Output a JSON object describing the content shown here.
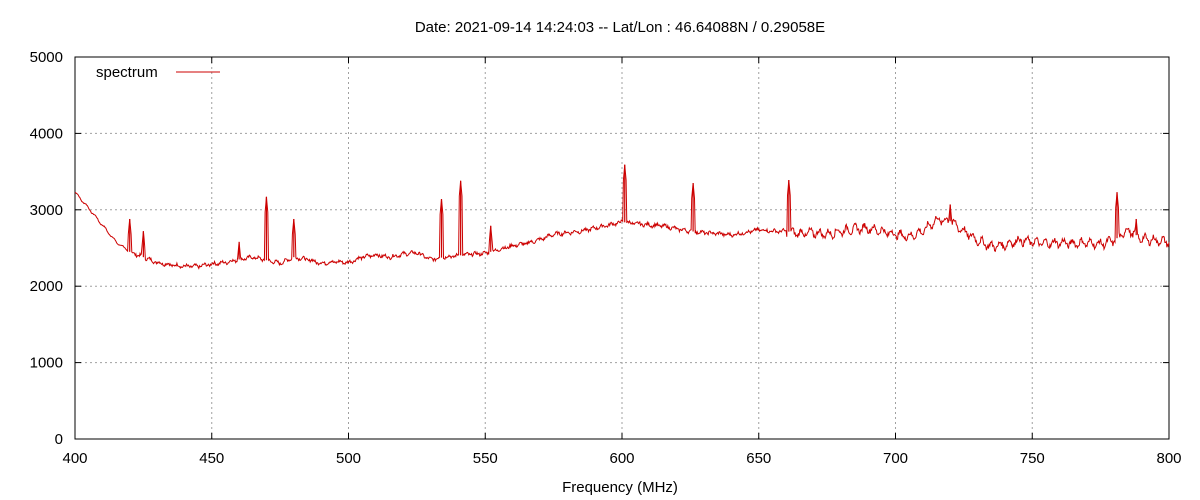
{
  "chart_data": {
    "type": "line",
    "title": "Date: 2021-09-14 14:24:03  --  Lat/Lon : 46.64088N / 0.29058E",
    "xlabel": "Frequency (MHz)",
    "ylabel": "",
    "xlim": [
      400,
      800
    ],
    "ylim": [
      0,
      5000
    ],
    "xticks": [
      400,
      450,
      500,
      550,
      600,
      650,
      700,
      750,
      800
    ],
    "yticks": [
      0,
      1000,
      2000,
      3000,
      4000,
      5000
    ],
    "grid": true,
    "legend_position": "top-left",
    "series": [
      {
        "name": "spectrum",
        "color": "#cc0000",
        "x": [
          400,
          405,
          410,
          415,
          420,
          425,
          430,
          435,
          440,
          445,
          450,
          455,
          460,
          465,
          470,
          475,
          480,
          485,
          490,
          495,
          500,
          505,
          510,
          515,
          520,
          525,
          530,
          535,
          540,
          545,
          550,
          555,
          560,
          565,
          570,
          575,
          580,
          585,
          590,
          595,
          600,
          605,
          610,
          615,
          620,
          625,
          630,
          635,
          640,
          645,
          650,
          655,
          660,
          665,
          670,
          675,
          680,
          685,
          690,
          695,
          700,
          705,
          710,
          715,
          720,
          725,
          730,
          735,
          740,
          745,
          750,
          755,
          760,
          765,
          770,
          775,
          780,
          785,
          790,
          795,
          800
        ],
        "y": [
          3230,
          3020,
          2800,
          2580,
          2450,
          2380,
          2310,
          2280,
          2260,
          2260,
          2290,
          2310,
          2350,
          2380,
          2340,
          2300,
          2380,
          2350,
          2300,
          2320,
          2310,
          2380,
          2410,
          2380,
          2420,
          2440,
          2350,
          2380,
          2400,
          2420,
          2430,
          2480,
          2530,
          2560,
          2610,
          2680,
          2700,
          2720,
          2760,
          2800,
          2840,
          2820,
          2800,
          2790,
          2750,
          2720,
          2700,
          2690,
          2670,
          2700,
          2740,
          2720,
          2720,
          2690,
          2700,
          2680,
          2720,
          2750,
          2760,
          2720,
          2680,
          2650,
          2720,
          2870,
          2850,
          2720,
          2600,
          2520,
          2540,
          2600,
          2580,
          2560,
          2570,
          2560,
          2570,
          2550,
          2600,
          2740,
          2620,
          2600,
          2580
        ]
      }
    ],
    "spikes": [
      {
        "x": 420,
        "y": 2880
      },
      {
        "x": 425,
        "y": 2720
      },
      {
        "x": 460,
        "y": 2580
      },
      {
        "x": 470,
        "y": 3170
      },
      {
        "x": 480,
        "y": 2880
      },
      {
        "x": 534,
        "y": 3140
      },
      {
        "x": 541,
        "y": 3380
      },
      {
        "x": 552,
        "y": 2790
      },
      {
        "x": 601,
        "y": 3590
      },
      {
        "x": 626,
        "y": 3350
      },
      {
        "x": 661,
        "y": 3390
      },
      {
        "x": 720,
        "y": 3070
      },
      {
        "x": 781,
        "y": 3230
      },
      {
        "x": 788,
        "y": 2880
      }
    ]
  }
}
